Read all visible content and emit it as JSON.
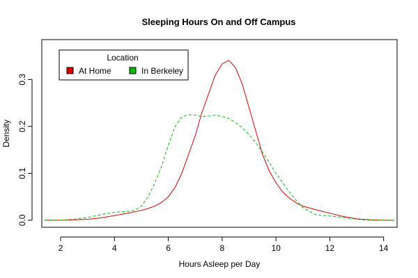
{
  "chart_data": {
    "type": "line",
    "title": "Sleeping Hours On and Off Campus",
    "xlabel": "Hours Asleep per Day",
    "ylabel": "Density",
    "xlim": [
      1.3,
      14.5
    ],
    "ylim": [
      -0.015,
      0.385
    ],
    "xticks": [
      2,
      4,
      6,
      8,
      10,
      12,
      14
    ],
    "yticks": [
      0.0,
      0.1,
      0.2,
      0.3
    ],
    "ytick_labels": [
      "0.0",
      "0.1",
      "0.2",
      "0.3"
    ],
    "grid": false,
    "legend": {
      "title": "Location",
      "placement": "top-left",
      "entries": [
        "At Home",
        "In Berkeley"
      ]
    },
    "series": [
      {
        "name": "At Home",
        "color": "#dd0000",
        "dash": "solid",
        "x": [
          1.4,
          2.0,
          2.5,
          3.0,
          3.5,
          4.0,
          4.5,
          5.0,
          5.25,
          5.5,
          5.75,
          6.0,
          6.25,
          6.5,
          6.75,
          7.0,
          7.25,
          7.5,
          7.75,
          8.0,
          8.25,
          8.5,
          8.75,
          9.0,
          9.25,
          9.5,
          9.75,
          10.0,
          10.25,
          10.5,
          10.75,
          11.0,
          11.5,
          12.0,
          12.5,
          13.0,
          13.5,
          14.0,
          14.4
        ],
        "y": [
          0.0,
          0.0,
          0.001,
          0.002,
          0.005,
          0.01,
          0.015,
          0.021,
          0.025,
          0.03,
          0.038,
          0.05,
          0.07,
          0.1,
          0.14,
          0.18,
          0.23,
          0.27,
          0.31,
          0.333,
          0.341,
          0.325,
          0.29,
          0.24,
          0.19,
          0.14,
          0.105,
          0.08,
          0.06,
          0.047,
          0.037,
          0.03,
          0.022,
          0.015,
          0.008,
          0.003,
          0.001,
          0.0,
          0.0
        ]
      },
      {
        "name": "In Berkeley",
        "color": "#00bb00",
        "dash": "dashed",
        "x": [
          1.4,
          2.0,
          2.5,
          3.0,
          3.5,
          4.0,
          4.5,
          4.75,
          5.0,
          5.25,
          5.5,
          5.75,
          6.0,
          6.25,
          6.5,
          6.75,
          7.0,
          7.25,
          7.5,
          7.75,
          8.0,
          8.25,
          8.5,
          8.75,
          9.0,
          9.25,
          9.5,
          9.75,
          10.0,
          10.25,
          10.5,
          10.75,
          11.0,
          11.5,
          12.0,
          12.5,
          13.0,
          13.5,
          14.0,
          14.4
        ],
        "y": [
          0.0,
          0.0,
          0.002,
          0.006,
          0.012,
          0.017,
          0.019,
          0.021,
          0.03,
          0.05,
          0.08,
          0.115,
          0.16,
          0.2,
          0.22,
          0.225,
          0.224,
          0.221,
          0.222,
          0.224,
          0.221,
          0.217,
          0.208,
          0.197,
          0.183,
          0.165,
          0.145,
          0.123,
          0.1,
          0.08,
          0.06,
          0.042,
          0.027,
          0.011,
          0.009,
          0.006,
          0.002,
          0.0,
          0.0,
          0.0
        ]
      }
    ]
  }
}
